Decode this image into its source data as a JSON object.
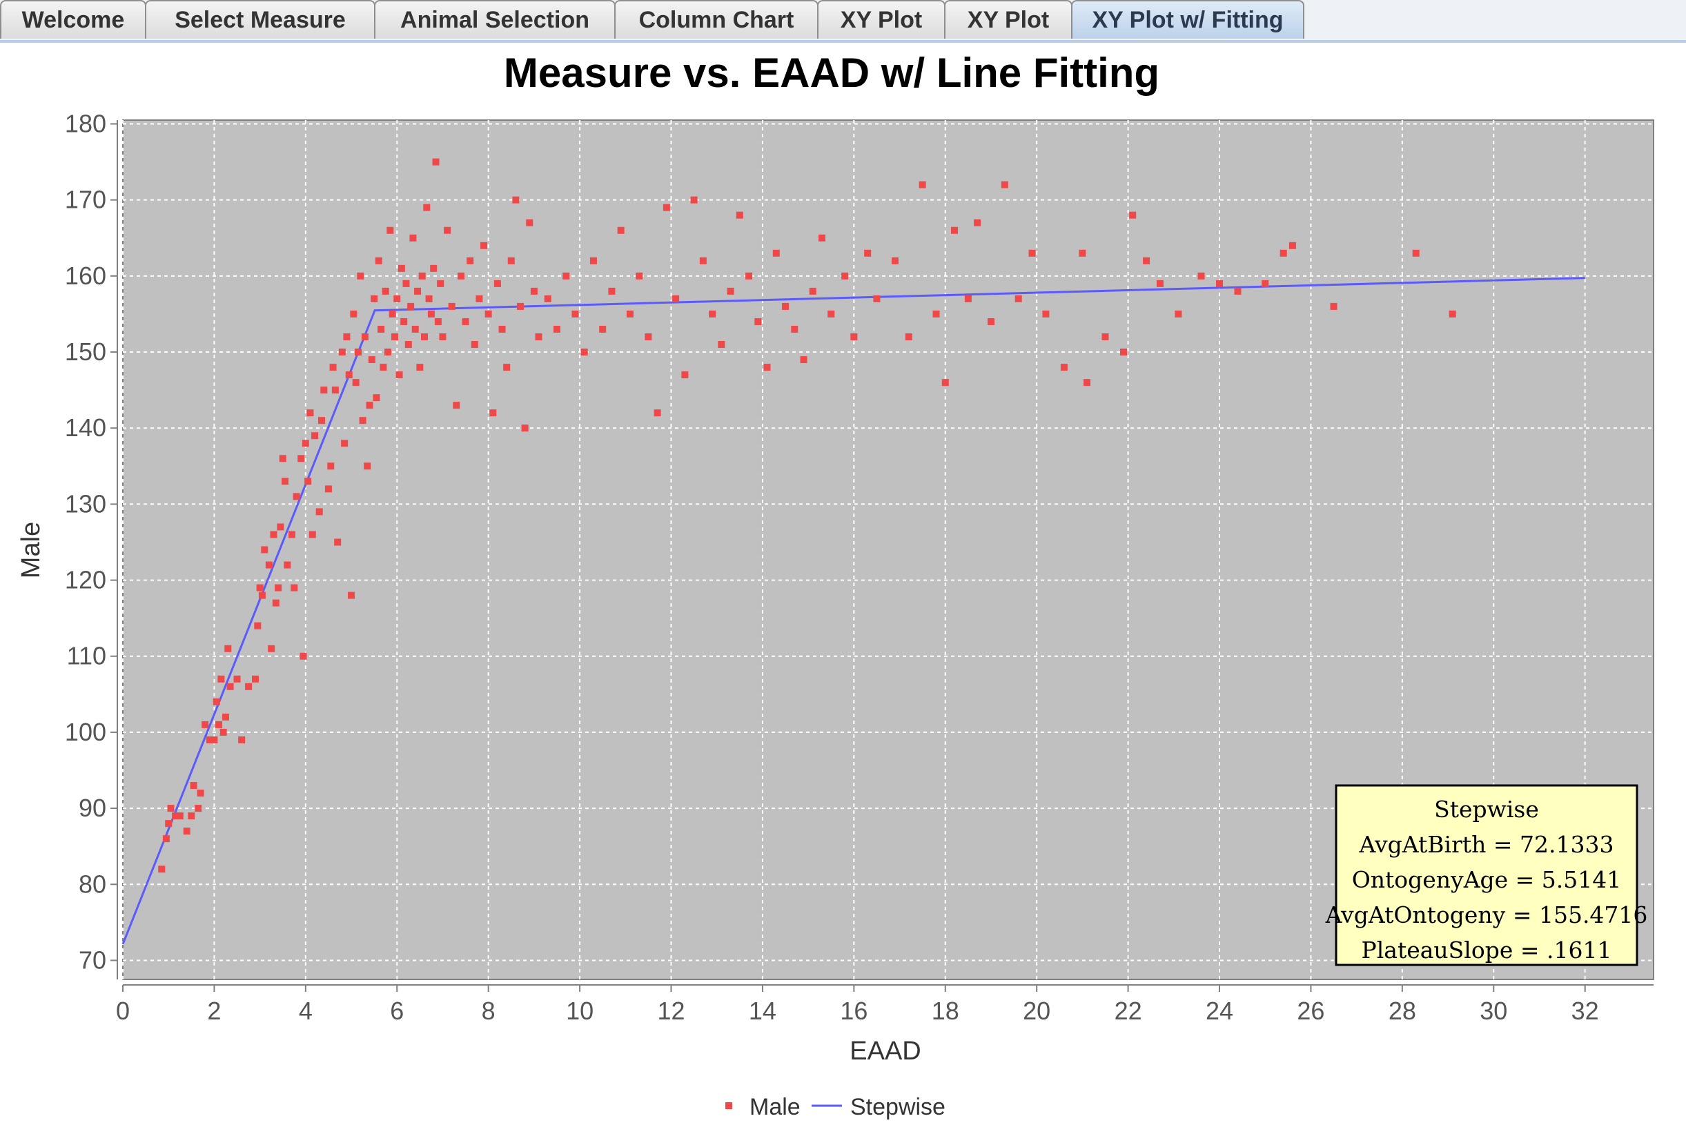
{
  "tabs": [
    {
      "label": "Welcome",
      "active": false
    },
    {
      "label": "Select Measure",
      "active": false
    },
    {
      "label": "Animal Selection",
      "active": false
    },
    {
      "label": "Column Chart",
      "active": false
    },
    {
      "label": "XY Plot",
      "active": false
    },
    {
      "label": "XY Plot",
      "active": false
    },
    {
      "label": "XY Plot w/ Fitting",
      "active": true
    }
  ],
  "colors": {
    "plot_background": "#c0c0c0",
    "scatter": "#f04848",
    "fit_line": "#5a5aff",
    "annotation_bg": "#ffffc0"
  },
  "chart_data": {
    "type": "scatter",
    "title": "Measure vs. EAAD w/ Line Fitting",
    "xlabel": "EAAD",
    "ylabel": "Male",
    "xlim": [
      0,
      33.5
    ],
    "ylim": [
      67.5,
      180.5
    ],
    "x_ticks": [
      0,
      2,
      4,
      6,
      8,
      10,
      12,
      14,
      16,
      18,
      20,
      22,
      24,
      26,
      28,
      30,
      32
    ],
    "y_ticks": [
      70,
      80,
      90,
      100,
      110,
      120,
      130,
      140,
      150,
      160,
      170,
      180
    ],
    "grid": true,
    "legend": {
      "position": "bottom-center",
      "entries": [
        "Male",
        "Stepwise"
      ]
    },
    "series": [
      {
        "name": "Male",
        "type": "scatter",
        "points": [
          [
            0.85,
            82
          ],
          [
            0.95,
            86
          ],
          [
            1.0,
            88
          ],
          [
            1.05,
            90
          ],
          [
            1.15,
            89
          ],
          [
            1.25,
            89
          ],
          [
            1.4,
            87
          ],
          [
            1.5,
            89
          ],
          [
            1.55,
            93
          ],
          [
            1.65,
            90
          ],
          [
            1.7,
            92
          ],
          [
            1.8,
            101
          ],
          [
            1.9,
            99
          ],
          [
            2.0,
            99
          ],
          [
            2.05,
            104
          ],
          [
            2.1,
            101
          ],
          [
            2.15,
            107
          ],
          [
            2.2,
            100
          ],
          [
            2.25,
            102
          ],
          [
            2.3,
            111
          ],
          [
            2.35,
            106
          ],
          [
            2.5,
            107
          ],
          [
            2.6,
            99
          ],
          [
            2.75,
            106
          ],
          [
            2.9,
            107
          ],
          [
            2.95,
            114
          ],
          [
            3.0,
            119
          ],
          [
            3.05,
            118
          ],
          [
            3.1,
            124
          ],
          [
            3.2,
            122
          ],
          [
            3.25,
            111
          ],
          [
            3.3,
            126
          ],
          [
            3.35,
            117
          ],
          [
            3.4,
            119
          ],
          [
            3.45,
            127
          ],
          [
            3.5,
            136
          ],
          [
            3.55,
            133
          ],
          [
            3.6,
            122
          ],
          [
            3.7,
            126
          ],
          [
            3.75,
            119
          ],
          [
            3.8,
            131
          ],
          [
            3.9,
            136
          ],
          [
            3.95,
            110
          ],
          [
            4.0,
            138
          ],
          [
            4.05,
            133
          ],
          [
            4.1,
            142
          ],
          [
            4.15,
            126
          ],
          [
            4.2,
            139
          ],
          [
            4.3,
            129
          ],
          [
            4.35,
            141
          ],
          [
            4.4,
            145
          ],
          [
            4.5,
            132
          ],
          [
            4.55,
            135
          ],
          [
            4.6,
            148
          ],
          [
            4.65,
            145
          ],
          [
            4.7,
            125
          ],
          [
            4.8,
            150
          ],
          [
            4.85,
            138
          ],
          [
            4.9,
            152
          ],
          [
            4.95,
            147
          ],
          [
            5.0,
            118
          ],
          [
            5.05,
            155
          ],
          [
            5.1,
            146
          ],
          [
            5.15,
            150
          ],
          [
            5.2,
            160
          ],
          [
            5.25,
            141
          ],
          [
            5.3,
            152
          ],
          [
            5.35,
            135
          ],
          [
            5.4,
            143
          ],
          [
            5.45,
            149
          ],
          [
            5.5,
            157
          ],
          [
            5.55,
            144
          ],
          [
            5.6,
            162
          ],
          [
            5.65,
            153
          ],
          [
            5.7,
            148
          ],
          [
            5.75,
            158
          ],
          [
            5.8,
            150
          ],
          [
            5.85,
            166
          ],
          [
            5.9,
            155
          ],
          [
            5.95,
            152
          ],
          [
            6.0,
            157
          ],
          [
            6.05,
            147
          ],
          [
            6.1,
            161
          ],
          [
            6.15,
            154
          ],
          [
            6.2,
            159
          ],
          [
            6.25,
            151
          ],
          [
            6.3,
            156
          ],
          [
            6.35,
            165
          ],
          [
            6.4,
            153
          ],
          [
            6.45,
            158
          ],
          [
            6.5,
            148
          ],
          [
            6.55,
            160
          ],
          [
            6.6,
            152
          ],
          [
            6.65,
            169
          ],
          [
            6.7,
            157
          ],
          [
            6.75,
            155
          ],
          [
            6.8,
            161
          ],
          [
            6.85,
            175
          ],
          [
            6.9,
            154
          ],
          [
            6.95,
            159
          ],
          [
            7.0,
            152
          ],
          [
            7.1,
            166
          ],
          [
            7.2,
            156
          ],
          [
            7.3,
            143
          ],
          [
            7.4,
            160
          ],
          [
            7.5,
            154
          ],
          [
            7.6,
            162
          ],
          [
            7.7,
            151
          ],
          [
            7.8,
            157
          ],
          [
            7.9,
            164
          ],
          [
            8.0,
            155
          ],
          [
            8.1,
            142
          ],
          [
            8.2,
            159
          ],
          [
            8.3,
            153
          ],
          [
            8.4,
            148
          ],
          [
            8.5,
            162
          ],
          [
            8.6,
            170
          ],
          [
            8.7,
            156
          ],
          [
            8.8,
            140
          ],
          [
            8.9,
            167
          ],
          [
            9.0,
            158
          ],
          [
            9.1,
            152
          ],
          [
            9.3,
            157
          ],
          [
            9.5,
            153
          ],
          [
            9.7,
            160
          ],
          [
            9.9,
            155
          ],
          [
            10.1,
            150
          ],
          [
            10.3,
            162
          ],
          [
            10.5,
            153
          ],
          [
            10.7,
            158
          ],
          [
            10.9,
            166
          ],
          [
            11.1,
            155
          ],
          [
            11.3,
            160
          ],
          [
            11.5,
            152
          ],
          [
            11.7,
            142
          ],
          [
            11.9,
            169
          ],
          [
            12.1,
            157
          ],
          [
            12.3,
            147
          ],
          [
            12.5,
            170
          ],
          [
            12.7,
            162
          ],
          [
            12.9,
            155
          ],
          [
            13.1,
            151
          ],
          [
            13.3,
            158
          ],
          [
            13.5,
            168
          ],
          [
            13.7,
            160
          ],
          [
            13.9,
            154
          ],
          [
            14.1,
            148
          ],
          [
            14.3,
            163
          ],
          [
            14.5,
            156
          ],
          [
            14.7,
            153
          ],
          [
            14.9,
            149
          ],
          [
            15.1,
            158
          ],
          [
            15.3,
            165
          ],
          [
            15.5,
            155
          ],
          [
            15.8,
            160
          ],
          [
            16.0,
            152
          ],
          [
            16.3,
            163
          ],
          [
            16.5,
            157
          ],
          [
            16.9,
            162
          ],
          [
            17.2,
            152
          ],
          [
            17.5,
            172
          ],
          [
            17.8,
            155
          ],
          [
            18.0,
            146
          ],
          [
            18.2,
            166
          ],
          [
            18.5,
            157
          ],
          [
            18.7,
            167
          ],
          [
            19.0,
            154
          ],
          [
            19.3,
            172
          ],
          [
            19.6,
            157
          ],
          [
            19.9,
            163
          ],
          [
            20.2,
            155
          ],
          [
            20.6,
            148
          ],
          [
            21.0,
            163
          ],
          [
            21.1,
            146
          ],
          [
            21.5,
            152
          ],
          [
            21.9,
            150
          ],
          [
            22.1,
            168
          ],
          [
            22.4,
            162
          ],
          [
            22.7,
            159
          ],
          [
            23.1,
            155
          ],
          [
            23.6,
            160
          ],
          [
            24.0,
            159
          ],
          [
            24.4,
            158
          ],
          [
            25.0,
            159
          ],
          [
            25.4,
            163
          ],
          [
            25.6,
            164
          ],
          [
            26.5,
            156
          ],
          [
            28.3,
            163
          ],
          [
            29.1,
            155
          ]
        ]
      },
      {
        "name": "Stepwise",
        "type": "line",
        "points": [
          [
            0,
            72.1333
          ],
          [
            5.5141,
            155.4716
          ],
          [
            32,
            159.7385
          ]
        ]
      }
    ],
    "annotation": {
      "lines": [
        "Stepwise",
        "AvgAtBirth = 72.1333",
        "OntogenyAge = 5.5141",
        "AvgAtOntogeny = 155.4716",
        "PlateauSlope = .1611"
      ],
      "position": "bottom-right"
    }
  }
}
